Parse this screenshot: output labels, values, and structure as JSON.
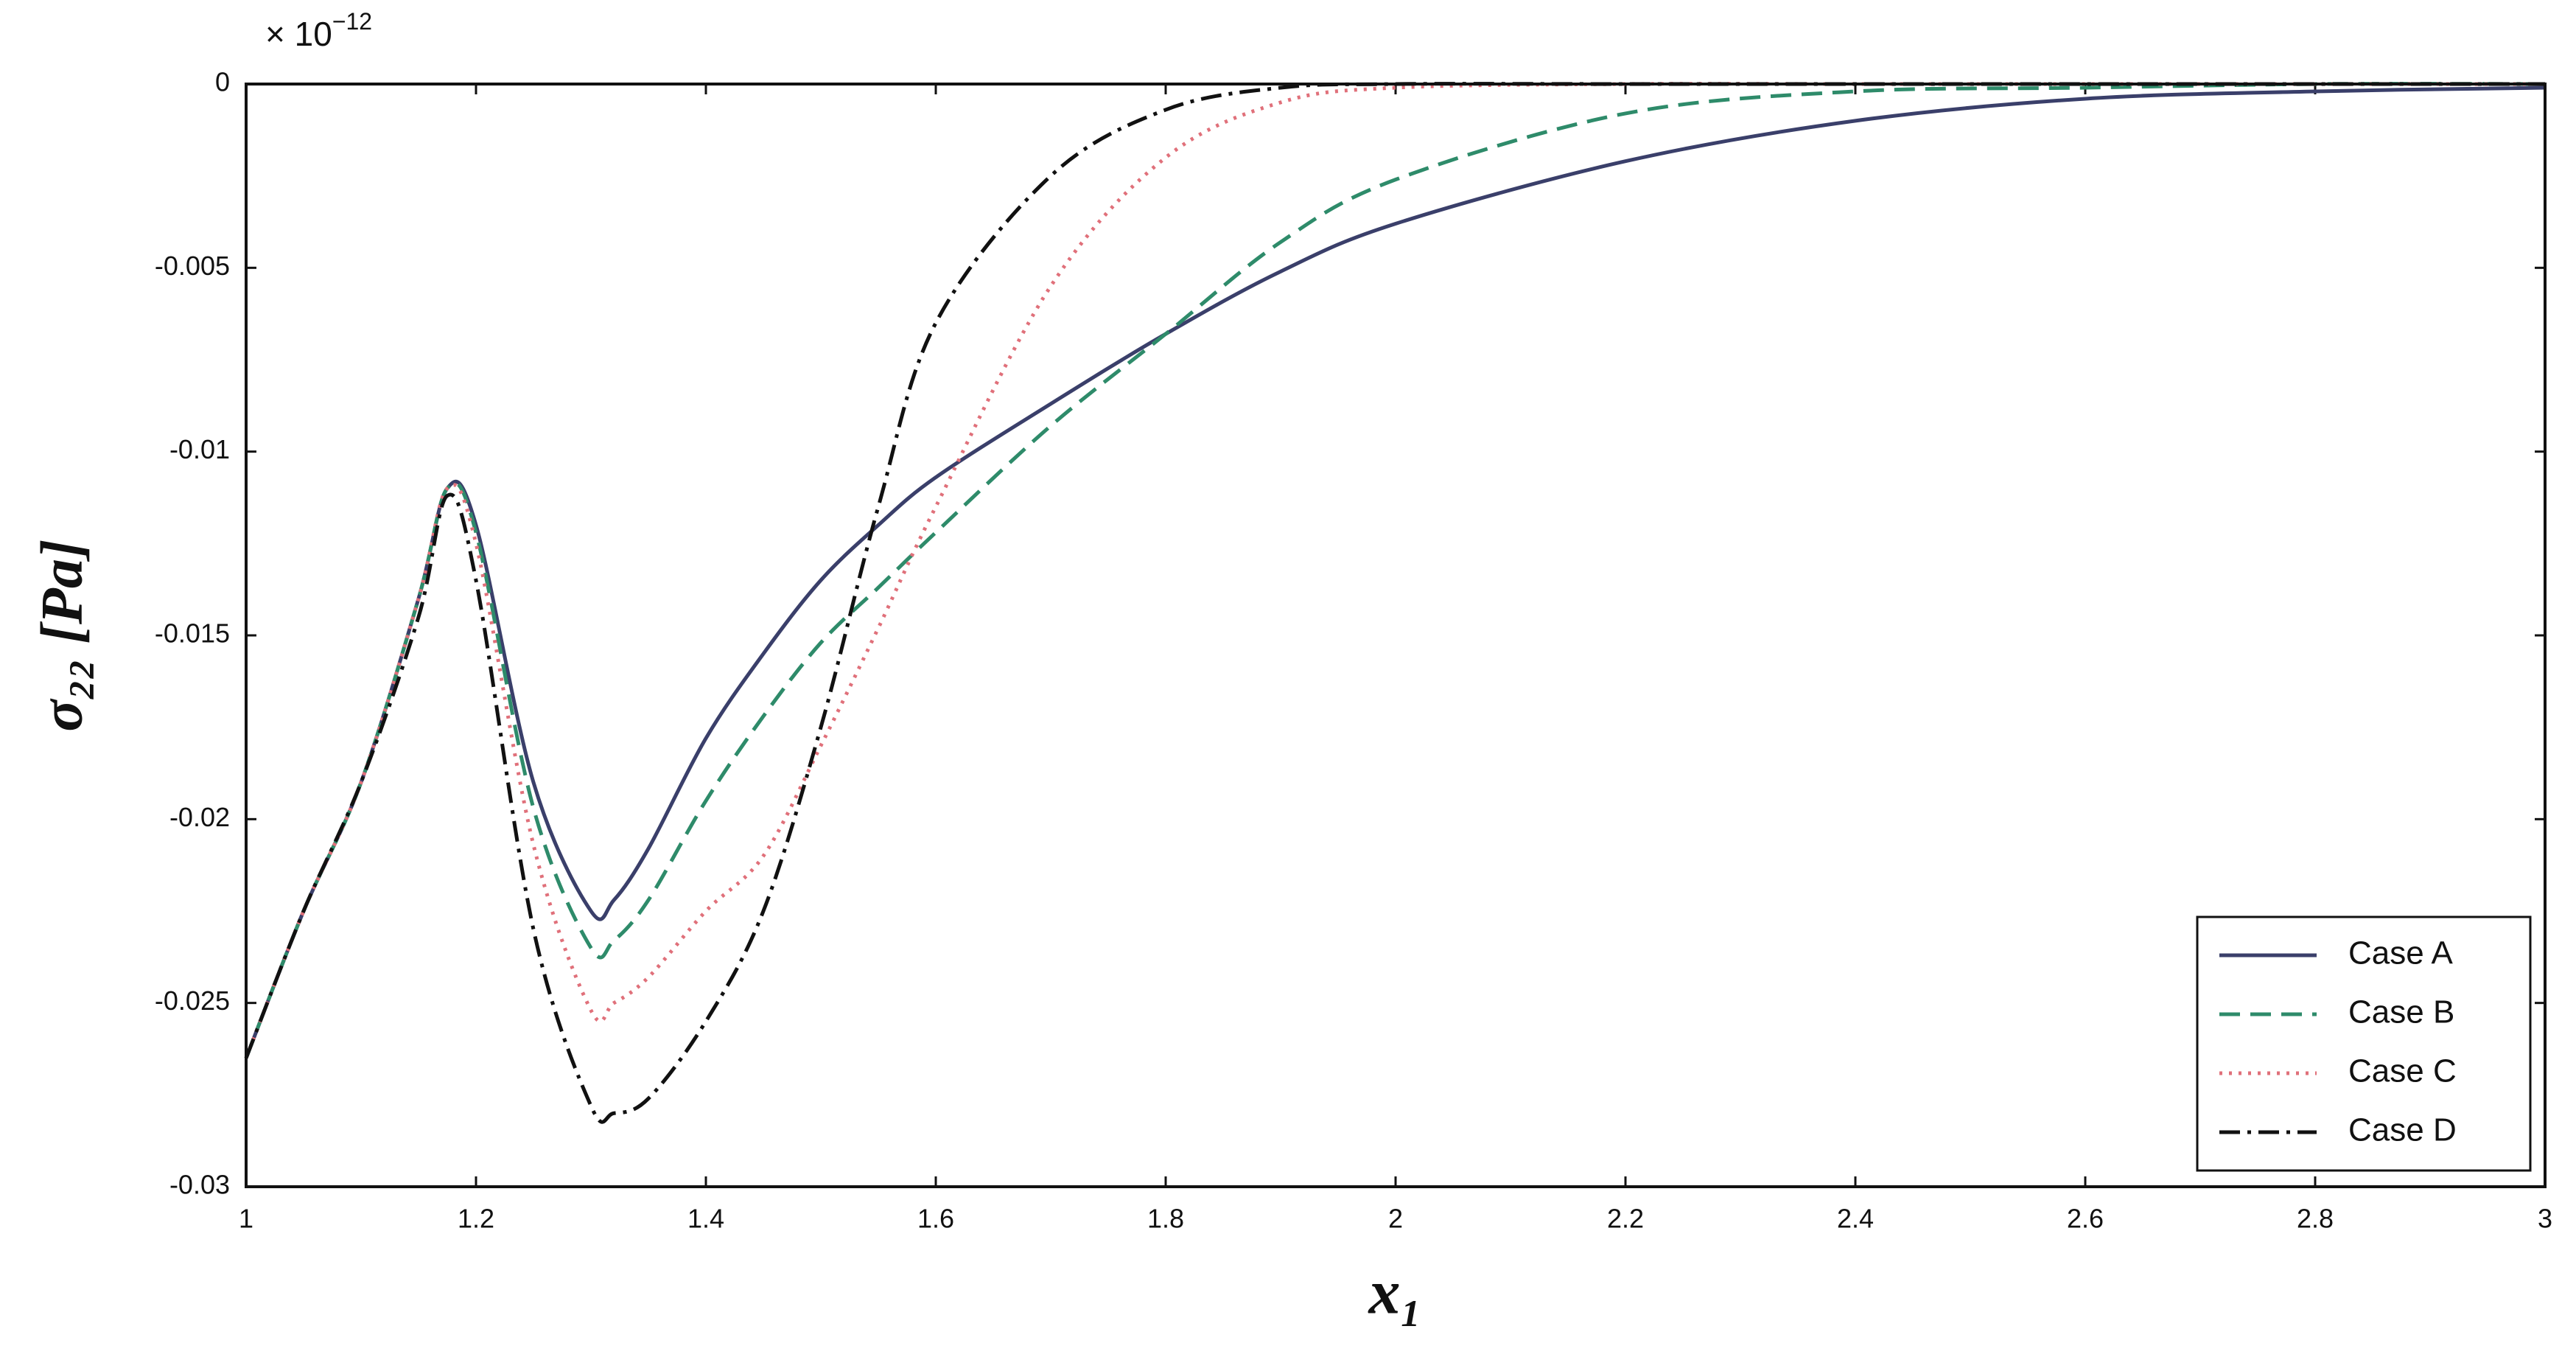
{
  "chart_data": {
    "type": "line",
    "multiplier_base": "× 10",
    "multiplier_exponent": "−12",
    "xlabel": "x₁",
    "ylabel": "σ₂₂ [Pa]",
    "x": [
      1,
      1.05,
      1.1,
      1.15,
      1.175,
      1.2,
      1.25,
      1.3,
      1.32,
      1.35,
      1.4,
      1.45,
      1.5,
      1.55,
      1.6,
      1.7,
      1.8,
      1.9,
      2,
      2.2,
      2.4,
      2.6,
      2.8,
      3
    ],
    "series": [
      {
        "name": "Case A",
        "color": "#3a3f6a",
        "style": "solid",
        "values": [
          -0.0265,
          -0.0225,
          -0.019,
          -0.014,
          -0.011,
          -0.012,
          -0.019,
          -0.0225,
          -0.0222,
          -0.0208,
          -0.0178,
          -0.0155,
          -0.0135,
          -0.012,
          -0.0107,
          -0.0087,
          -0.0068,
          -0.0051,
          -0.0038,
          -0.0021,
          -0.001,
          -0.0004,
          -0.0002,
          -0.0001
        ]
      },
      {
        "name": "Case B",
        "color": "#2e8b6a",
        "style": "dashed",
        "values": [
          -0.0265,
          -0.0225,
          -0.019,
          -0.014,
          -0.011,
          -0.0122,
          -0.0197,
          -0.0235,
          -0.0233,
          -0.0222,
          -0.0195,
          -0.0172,
          -0.0152,
          -0.0137,
          -0.0122,
          -0.0093,
          -0.0068,
          -0.0043,
          -0.0026,
          -0.0008,
          -0.0002,
          -0.0001,
          0,
          0
        ]
      },
      {
        "name": "Case C",
        "color": "#e0707a",
        "style": "dotted",
        "values": [
          -0.0265,
          -0.0225,
          -0.019,
          -0.014,
          -0.011,
          -0.0125,
          -0.0207,
          -0.0252,
          -0.025,
          -0.0243,
          -0.0225,
          -0.021,
          -0.018,
          -0.0148,
          -0.0115,
          -0.0055,
          -0.002,
          -0.0005,
          -0.0001,
          0,
          0,
          0,
          0,
          0
        ]
      },
      {
        "name": "Case D",
        "color": "#111111",
        "style": "dashdot",
        "values": [
          -0.0265,
          -0.0225,
          -0.019,
          -0.0145,
          -0.0112,
          -0.0135,
          -0.023,
          -0.0278,
          -0.028,
          -0.0276,
          -0.0255,
          -0.0225,
          -0.0175,
          -0.0115,
          -0.0065,
          -0.0025,
          -0.0007,
          -0.0001,
          0,
          0,
          0,
          0,
          0,
          0
        ]
      }
    ],
    "xlim": [
      1,
      3
    ],
    "xticks": [
      1,
      1.2,
      1.4,
      1.6,
      1.8,
      2,
      2.2,
      2.4,
      2.6,
      2.8,
      3
    ],
    "ylim": [
      -0.03,
      0
    ],
    "yticks": [
      0,
      -0.005,
      -0.01,
      -0.015,
      -0.02,
      -0.025,
      -0.03
    ],
    "legend": "lower right"
  }
}
